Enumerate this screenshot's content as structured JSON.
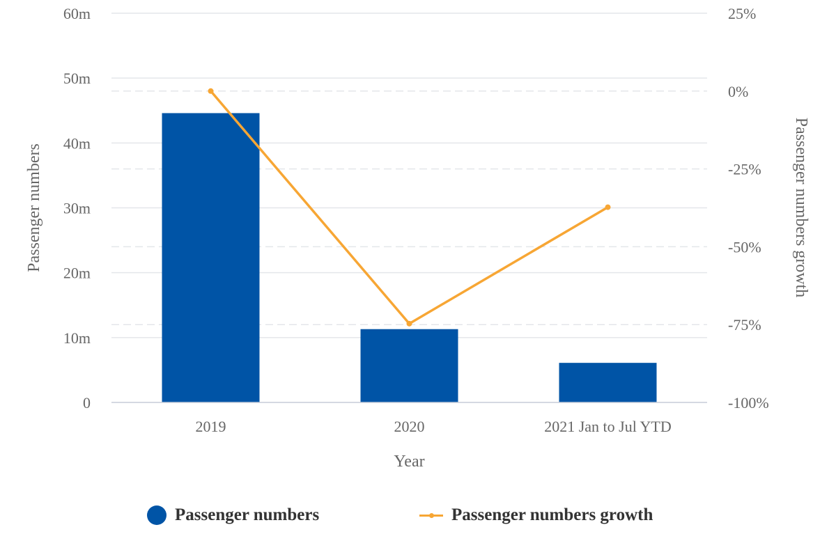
{
  "chart_data": {
    "type": "bar",
    "categories": [
      "2019",
      "2020",
      "2021 Jan to Jul YTD"
    ],
    "series": [
      {
        "name": "Passenger numbers",
        "type": "bar",
        "axis": "left",
        "color": "#0054A6",
        "values": [
          44.6,
          11.3,
          6.1
        ]
      },
      {
        "name": "Passenger numbers growth",
        "type": "line",
        "axis": "right",
        "color": "#F7A634",
        "values": [
          0,
          -74.7,
          -37.3
        ]
      }
    ],
    "xlabel": "Year",
    "ylabel": "Passenger numbers",
    "y2label": "Passenger numbers growth",
    "ylim": [
      0,
      60
    ],
    "y2lim": [
      -100,
      25
    ],
    "yticks": [
      "0",
      "10m",
      "20m",
      "30m",
      "40m",
      "50m",
      "60m"
    ],
    "y2ticks": [
      "-100%",
      "-75%",
      "-50%",
      "-25%",
      "0%",
      "25%"
    ],
    "grid": true,
    "legend_position": "bottom"
  }
}
